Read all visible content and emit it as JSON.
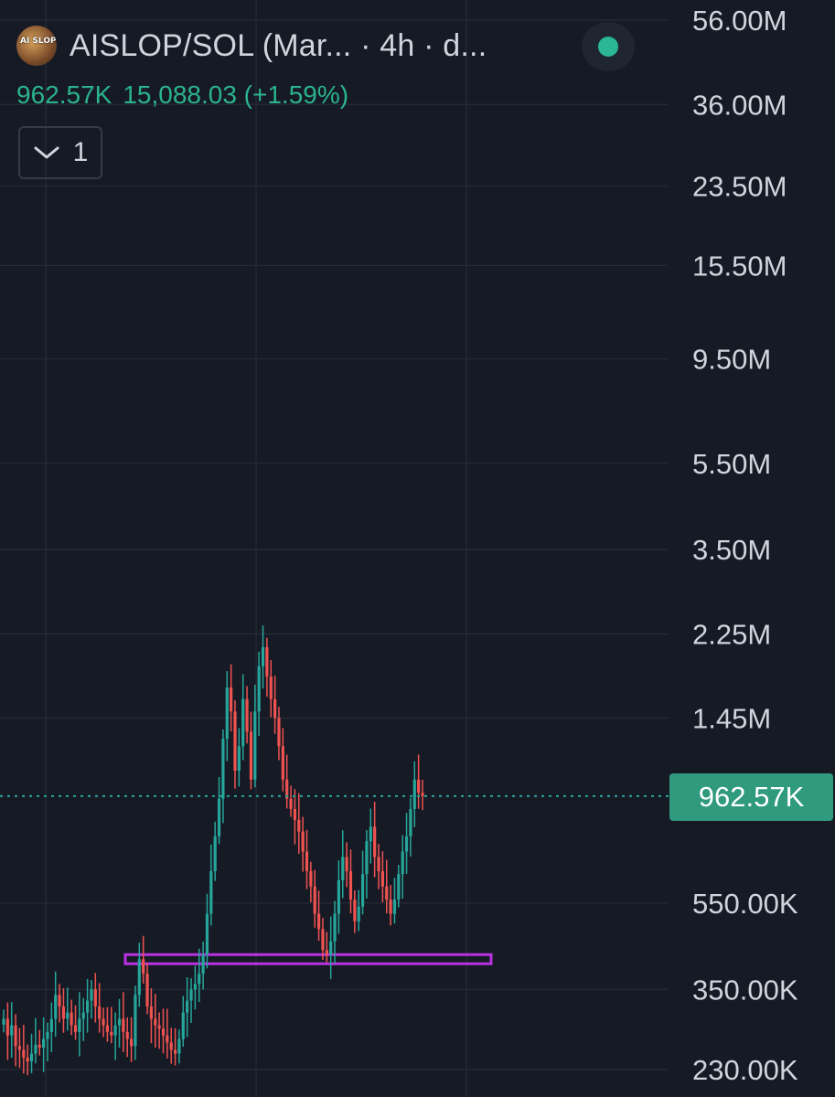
{
  "header": {
    "avatar_text": "AI SLOP",
    "title": "AISLOP/SOL (Mar...   · 4h · d...",
    "last_value": "962.57K",
    "change_text": "15,088.03 (+1.59%)",
    "indicator_count": "1"
  },
  "colors": {
    "background": "#161a25",
    "grid": "#2a2e39",
    "axis_text": "#d1d4dc",
    "up": "#26a69a",
    "down": "#ef5350",
    "support_line": "#b832e0",
    "price_tag": "#2f9a7e",
    "status_dot": "#2bb795"
  },
  "icons": {
    "avatar": "token-avatar-icon",
    "status": "live-status-dot-icon",
    "collapse": "chevron-down-icon"
  },
  "chart_data": {
    "type": "candlestick",
    "title": "AISLOP/SOL (Mar... · 4h · d...",
    "yscale": "log",
    "ylim": [
      210000,
      60000000
    ],
    "y_ticks": [
      "56.00M",
      "36.00M",
      "23.50M",
      "15.50M",
      "9.50M",
      "5.50M",
      "3.50M",
      "2.25M",
      "1.45M",
      "550.00K",
      "350.00K",
      "230.00K"
    ],
    "y_tick_values": [
      56000000,
      36000000,
      23500000,
      15500000,
      9500000,
      5500000,
      3500000,
      2250000,
      1450000,
      550000,
      350000,
      230000
    ],
    "last_price": 962570,
    "last_price_label": "962.57K",
    "grid": true,
    "support_level": 410000,
    "candles_approx_close": [
      300000,
      275000,
      290000,
      260000,
      255000,
      245000,
      240000,
      250000,
      262000,
      258000,
      270000,
      280000,
      300000,
      340000,
      320000,
      300000,
      310000,
      290000,
      280000,
      300000,
      310000,
      330000,
      350000,
      320000,
      300000,
      290000,
      280000,
      275000,
      290000,
      300000,
      280000,
      270000,
      260000,
      340000,
      410000,
      380000,
      320000,
      300000,
      290000,
      285000,
      275000,
      265000,
      255000,
      250000,
      270000,
      310000,
      330000,
      350000,
      360000,
      380000,
      420000,
      520000,
      650000,
      780000,
      950000,
      1300000,
      1700000,
      1500000,
      1100000,
      1250000,
      1600000,
      1350000,
      1050000,
      1500000,
      1900000,
      2100000,
      1800000,
      1600000,
      1450000,
      1250000,
      1050000,
      950000,
      900000,
      850000,
      800000,
      720000,
      650000,
      600000,
      520000,
      480000,
      430000,
      420000,
      450000,
      520000,
      620000,
      700000,
      650000,
      560000,
      500000,
      540000,
      640000,
      760000,
      820000,
      700000,
      650000,
      600000,
      560000,
      520000,
      560000,
      640000,
      720000,
      780000,
      900000,
      1050000,
      980000,
      962570
    ]
  }
}
